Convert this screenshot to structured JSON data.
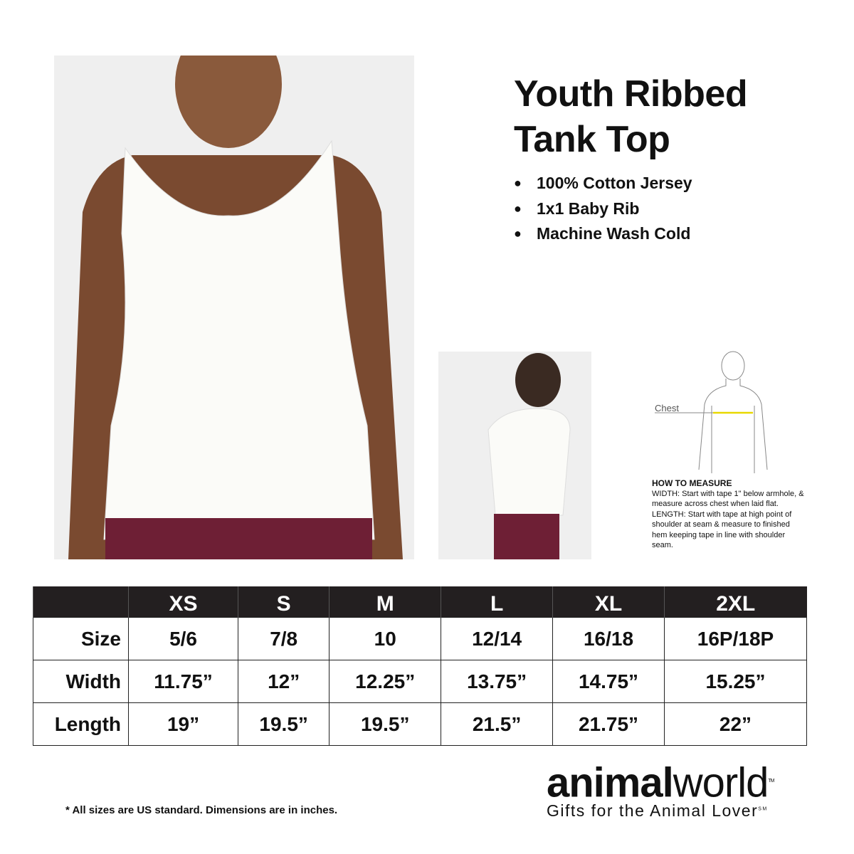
{
  "product": {
    "title_line1": "Youth Ribbed",
    "title_line2": "Tank Top",
    "features": [
      "100% Cotton Jersey",
      "1x1 Baby Rib",
      "Machine Wash Cold"
    ]
  },
  "diagram": {
    "chest_label": "Chest",
    "tape_color": "#e8d800",
    "how_title": "HOW TO MEASURE",
    "how_text": "WIDTH: Start with tape 1\" below armhole, & measure across chest when laid flat. LENGTH: Start with tape at high point of shoulder at seam & measure to finished hem keeping tape in line with shoulder seam."
  },
  "table": {
    "headers": [
      "",
      "XS",
      "S",
      "M",
      "L",
      "XL",
      "2XL"
    ],
    "rows": [
      {
        "label": "Size",
        "values": [
          "5/6",
          "7/8",
          "10",
          "12/14",
          "16/18",
          "16P/18P"
        ]
      },
      {
        "label": "Width",
        "values": [
          "11.75”",
          "12”",
          "12.25”",
          "13.75”",
          "14.75”",
          "15.25”"
        ]
      },
      {
        "label": "Length",
        "values": [
          "19”",
          "19.5”",
          "19.5”",
          "21.5”",
          "21.75”",
          "22”"
        ]
      }
    ]
  },
  "footnote": "* All sizes are US standard. Dimensions are in inches.",
  "logo": {
    "bold": "animal",
    "light": "world",
    "tm": "TM",
    "tagline": "Gifts for the Animal Lover",
    "sm": "SM"
  },
  "colors": {
    "header_bg": "#231f20",
    "leggings": "#6e1f35"
  }
}
